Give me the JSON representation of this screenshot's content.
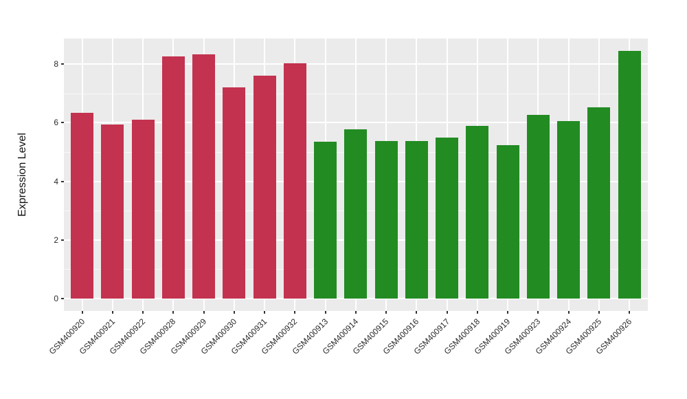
{
  "chart_data": {
    "type": "bar",
    "title": "",
    "xlabel": "",
    "ylabel": "Expression Level",
    "ylim": [
      0,
      8.8
    ],
    "yticks": [
      0,
      2,
      4,
      6,
      8
    ],
    "yticks_minor": [
      1,
      3,
      5,
      7
    ],
    "grid": "white major/minor gridlines on gray panel, vertical gridline at each category",
    "legend_position": "none",
    "categories": [
      "GSM400920",
      "GSM400921",
      "GSM400922",
      "GSM400928",
      "GSM400929",
      "GSM400930",
      "GSM400931",
      "GSM400932",
      "GSM400913",
      "GSM400914",
      "GSM400915",
      "GSM400916",
      "GSM400917",
      "GSM400918",
      "GSM400919",
      "GSM400923",
      "GSM400924",
      "GSM400925",
      "GSM400926"
    ],
    "values": [
      6.34,
      5.94,
      6.1,
      8.27,
      8.33,
      7.21,
      7.61,
      8.03,
      5.35,
      5.77,
      5.38,
      5.37,
      5.49,
      5.9,
      5.24,
      6.27,
      6.06,
      6.53,
      8.44
    ],
    "bar_groups": [
      "group1",
      "group1",
      "group1",
      "group1",
      "group1",
      "group1",
      "group1",
      "group1",
      "group2",
      "group2",
      "group2",
      "group2",
      "group2",
      "group2",
      "group2",
      "group2",
      "group2",
      "group2",
      "group2"
    ],
    "colors": {
      "group1": "#C3324F",
      "group2": "#228B22",
      "panel_background": "#EBEBEB",
      "gridline": "#FFFFFF",
      "tick": "#333333",
      "axis_text": "#2B2B2B"
    }
  }
}
